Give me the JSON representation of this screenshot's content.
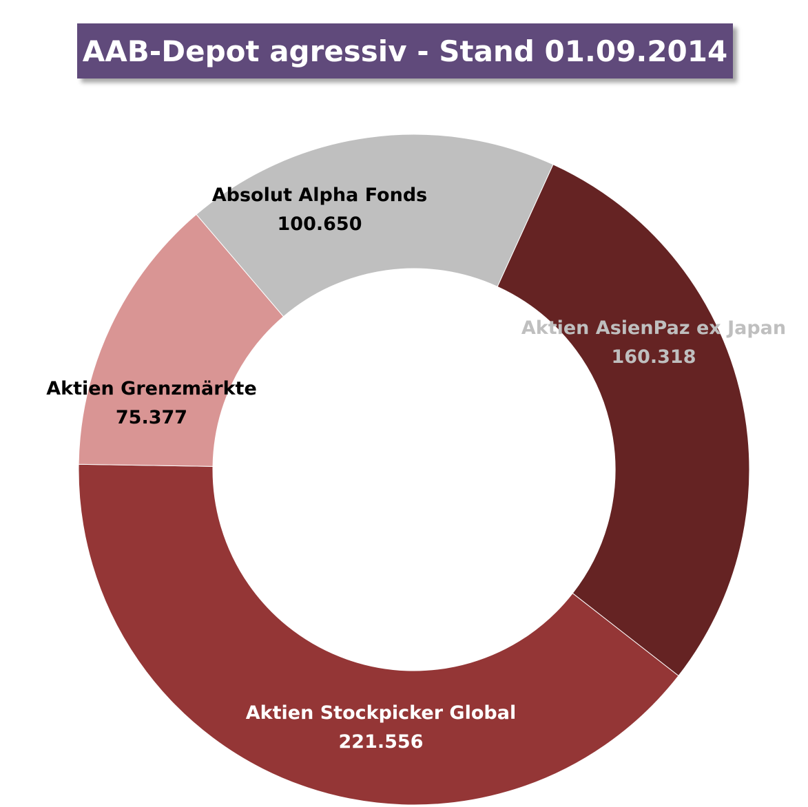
{
  "title": "AAB-Depot agressiv - Stand 01.09.2014",
  "colors": {
    "title_background": "#604a7b",
    "title_text": "#ffffff"
  },
  "chart_data": {
    "type": "pie",
    "variant": "donut",
    "title": "AAB-Depot agressiv - Stand 01.09.2014",
    "start_angle_deg": 24.5,
    "direction": "clockwise",
    "slices": [
      {
        "label": "Aktien AsienPaz ex Japan",
        "value_text": "160.318",
        "value": 160318,
        "color": "#652323",
        "label_color": "#bfbfbf"
      },
      {
        "label": "Aktien Stockpicker Global",
        "value_text": "221.556",
        "value": 221556,
        "color": "#943636",
        "label_color": "#ffffff"
      },
      {
        "label": "Aktien Grenzmärkte",
        "value_text": "75.377",
        "value": 75377,
        "color": "#d99594",
        "label_color": "#000000"
      },
      {
        "label": "Absolut Alpha Fonds",
        "value_text": "100.650",
        "value": 100650,
        "color": "#bfbfbf",
        "label_color": "#000000"
      }
    ]
  }
}
